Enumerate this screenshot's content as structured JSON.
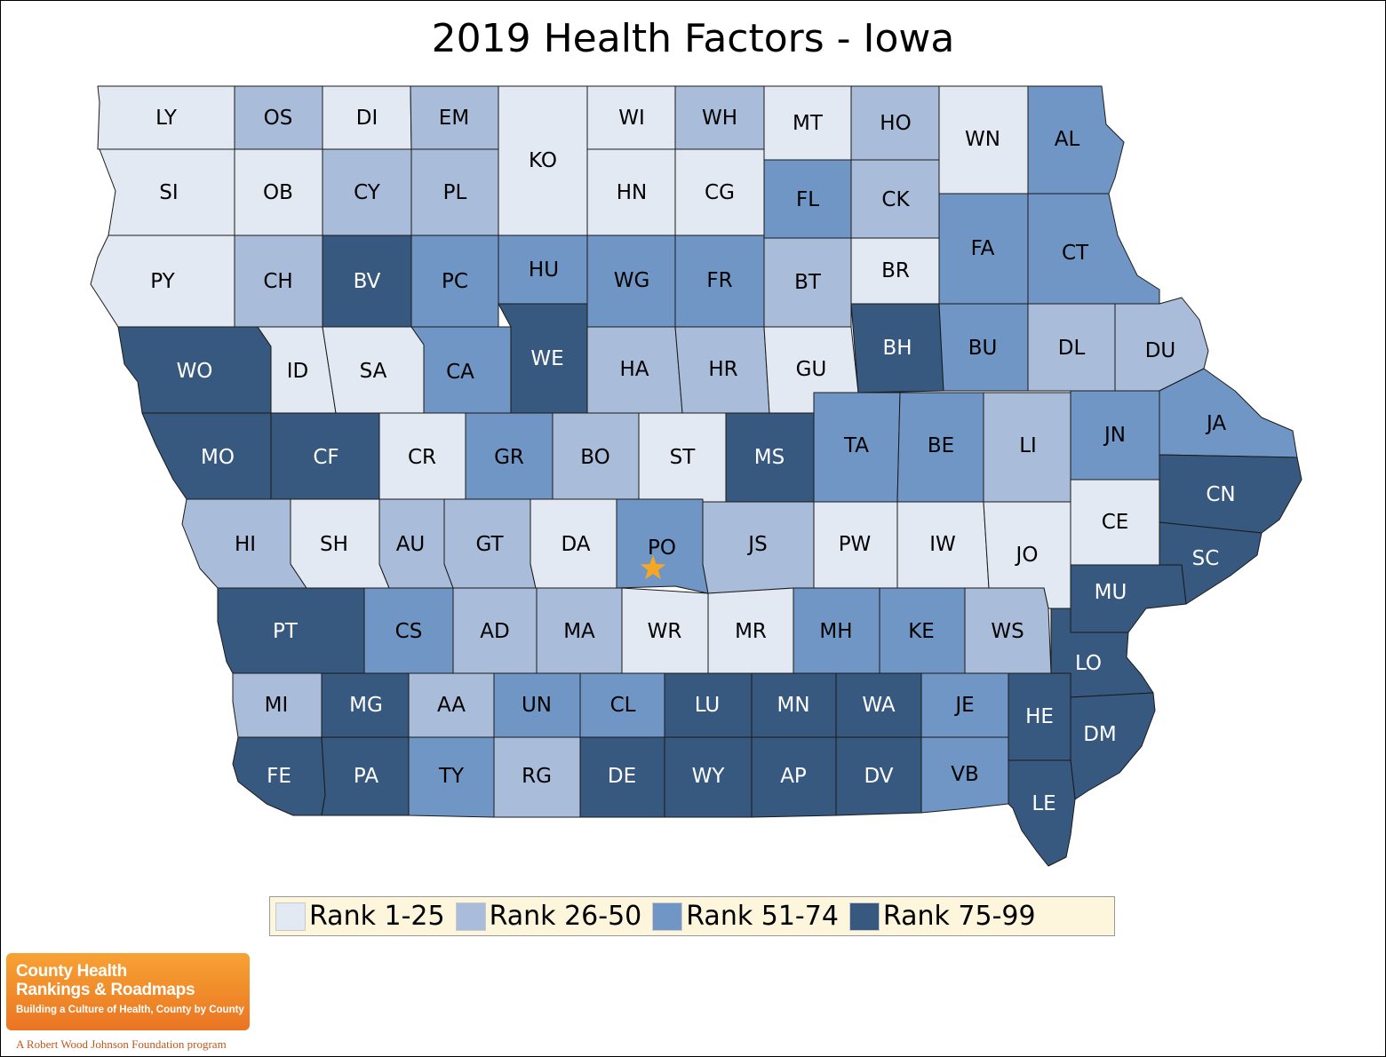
{
  "title": "2019 Health Factors - Iowa",
  "colors": {
    "rank_1_25": "#e3e9f3",
    "rank_26_50": "#a9bcd9",
    "rank_51_74": "#7096c5",
    "rank_75_99": "#37587f",
    "border": "#1a1a1a",
    "marker": "#f5a623"
  },
  "legend": [
    {
      "label": "Rank 1-25",
      "color": "#e3e9f3"
    },
    {
      "label": "Rank 26-50",
      "color": "#a9bcd9"
    },
    {
      "label": "Rank 51-74",
      "color": "#7096c5"
    },
    {
      "label": "Rank 75-99",
      "color": "#37587f"
    }
  ],
  "highlighted_county": "PO",
  "counties": [
    {
      "label": "LY",
      "tier": 1
    },
    {
      "label": "OS",
      "tier": 2
    },
    {
      "label": "DI",
      "tier": 1
    },
    {
      "label": "EM",
      "tier": 2
    },
    {
      "label": "KO",
      "tier": 1
    },
    {
      "label": "WI",
      "tier": 1
    },
    {
      "label": "WH",
      "tier": 2
    },
    {
      "label": "MT",
      "tier": 1
    },
    {
      "label": "HO",
      "tier": 2
    },
    {
      "label": "WN",
      "tier": 1
    },
    {
      "label": "AL",
      "tier": 3
    },
    {
      "label": "SI",
      "tier": 1
    },
    {
      "label": "OB",
      "tier": 1
    },
    {
      "label": "CY",
      "tier": 2
    },
    {
      "label": "PL",
      "tier": 2
    },
    {
      "label": "HN",
      "tier": 1
    },
    {
      "label": "CG",
      "tier": 1
    },
    {
      "label": "FL",
      "tier": 3
    },
    {
      "label": "CK",
      "tier": 2
    },
    {
      "label": "FA",
      "tier": 3
    },
    {
      "label": "CT",
      "tier": 3
    },
    {
      "label": "PY",
      "tier": 1
    },
    {
      "label": "CH",
      "tier": 2
    },
    {
      "label": "BV",
      "tier": 4
    },
    {
      "label": "PC",
      "tier": 3
    },
    {
      "label": "HU",
      "tier": 3
    },
    {
      "label": "WG",
      "tier": 3
    },
    {
      "label": "FR",
      "tier": 3
    },
    {
      "label": "BT",
      "tier": 2
    },
    {
      "label": "BR",
      "tier": 1
    },
    {
      "label": "WO",
      "tier": 4
    },
    {
      "label": "ID",
      "tier": 1
    },
    {
      "label": "SA",
      "tier": 1
    },
    {
      "label": "CA",
      "tier": 3
    },
    {
      "label": "WE",
      "tier": 4
    },
    {
      "label": "HA",
      "tier": 2
    },
    {
      "label": "HR",
      "tier": 2
    },
    {
      "label": "GU",
      "tier": 1
    },
    {
      "label": "BH",
      "tier": 4
    },
    {
      "label": "BU",
      "tier": 3
    },
    {
      "label": "DL",
      "tier": 2
    },
    {
      "label": "DU",
      "tier": 2
    },
    {
      "label": "MO",
      "tier": 4
    },
    {
      "label": "CF",
      "tier": 4
    },
    {
      "label": "CR",
      "tier": 1
    },
    {
      "label": "GR",
      "tier": 3
    },
    {
      "label": "BO",
      "tier": 2
    },
    {
      "label": "ST",
      "tier": 1
    },
    {
      "label": "MS",
      "tier": 4
    },
    {
      "label": "TA",
      "tier": 3
    },
    {
      "label": "BE",
      "tier": 3
    },
    {
      "label": "LI",
      "tier": 2
    },
    {
      "label": "JN",
      "tier": 3
    },
    {
      "label": "JA",
      "tier": 3
    },
    {
      "label": "CN",
      "tier": 4
    },
    {
      "label": "HI",
      "tier": 2
    },
    {
      "label": "SH",
      "tier": 1
    },
    {
      "label": "AU",
      "tier": 2
    },
    {
      "label": "GT",
      "tier": 2
    },
    {
      "label": "DA",
      "tier": 1
    },
    {
      "label": "PO",
      "tier": 3
    },
    {
      "label": "JS",
      "tier": 2
    },
    {
      "label": "PW",
      "tier": 1
    },
    {
      "label": "IW",
      "tier": 1
    },
    {
      "label": "JO",
      "tier": 1
    },
    {
      "label": "CE",
      "tier": 1
    },
    {
      "label": "SC",
      "tier": 4
    },
    {
      "label": "PT",
      "tier": 4
    },
    {
      "label": "CS",
      "tier": 3
    },
    {
      "label": "AD",
      "tier": 2
    },
    {
      "label": "MA",
      "tier": 2
    },
    {
      "label": "WR",
      "tier": 1
    },
    {
      "label": "MR",
      "tier": 1
    },
    {
      "label": "MH",
      "tier": 3
    },
    {
      "label": "KE",
      "tier": 3
    },
    {
      "label": "WS",
      "tier": 2
    },
    {
      "label": "MU",
      "tier": 4
    },
    {
      "label": "LO",
      "tier": 4
    },
    {
      "label": "MI",
      "tier": 2
    },
    {
      "label": "MG",
      "tier": 4
    },
    {
      "label": "AA",
      "tier": 2
    },
    {
      "label": "UN",
      "tier": 3
    },
    {
      "label": "CL",
      "tier": 3
    },
    {
      "label": "LU",
      "tier": 4
    },
    {
      "label": "MN",
      "tier": 4
    },
    {
      "label": "WA",
      "tier": 4
    },
    {
      "label": "JE",
      "tier": 3
    },
    {
      "label": "HE",
      "tier": 4
    },
    {
      "label": "DM",
      "tier": 4
    },
    {
      "label": "FE",
      "tier": 4
    },
    {
      "label": "PA",
      "tier": 4
    },
    {
      "label": "TY",
      "tier": 3
    },
    {
      "label": "RG",
      "tier": 2
    },
    {
      "label": "DE",
      "tier": 4
    },
    {
      "label": "WY",
      "tier": 4
    },
    {
      "label": "AP",
      "tier": 4
    },
    {
      "label": "DV",
      "tier": 4
    },
    {
      "label": "VB",
      "tier": 3
    },
    {
      "label": "LE",
      "tier": 4
    }
  ],
  "logo": {
    "line1": "County Health",
    "line2": "Rankings & Roadmaps",
    "tagline": "Building a Culture of Health, County by County",
    "subline": "A Robert Wood Johnson Foundation program"
  }
}
